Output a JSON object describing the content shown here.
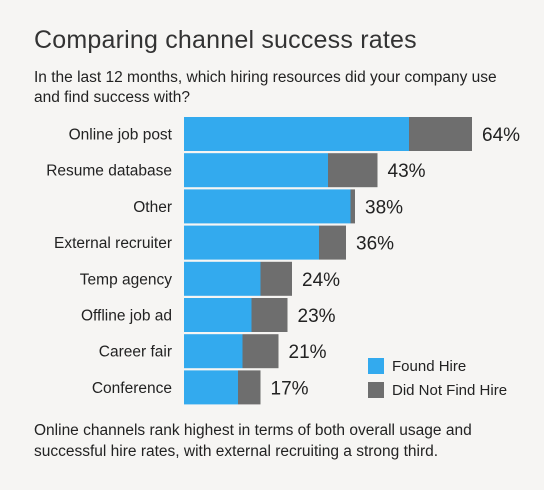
{
  "title": "Comparing channel success rates",
  "subtitle": "In the last 12 months, which hiring resources did your company use and find success with?",
  "footnote": "Online channels rank highest in terms of both overall usage and successful hire rates, with external recruiting a strong third.",
  "colors": {
    "found": "#33aaee",
    "not_found": "#6e6e6e"
  },
  "chart_data": {
    "type": "bar",
    "orientation": "horizontal",
    "stacked": true,
    "categories": [
      "Online job post",
      "Resume database",
      "Other",
      "External recruiter",
      "Temp agency",
      "Offline job ad",
      "Career fair",
      "Conference"
    ],
    "totals": [
      64,
      43,
      38,
      36,
      24,
      23,
      21,
      17
    ],
    "total_labels": [
      "64%",
      "43%",
      "38%",
      "36%",
      "24%",
      "23%",
      "21%",
      "17%"
    ],
    "series": [
      {
        "name": "Found Hire",
        "values": [
          50,
          32,
          37,
          30,
          17,
          15,
          13,
          12
        ]
      },
      {
        "name": "Did Not Find Hire",
        "values": [
          14,
          11,
          1,
          6,
          7,
          8,
          8,
          5
        ]
      }
    ],
    "legend": [
      "Found Hire",
      "Did Not Find Hire"
    ],
    "legend_position": "bottom-right",
    "grid": false
  }
}
